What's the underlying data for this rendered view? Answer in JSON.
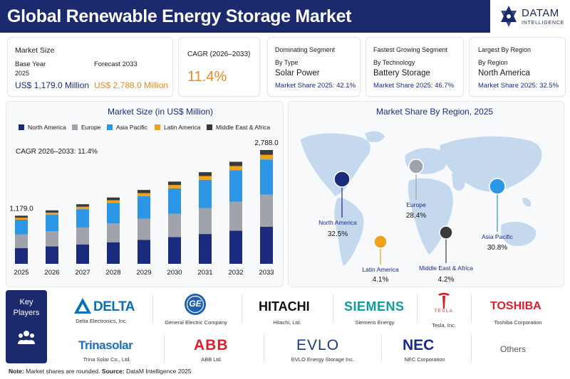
{
  "header": {
    "title": "Global Renewable Energy Storage Market"
  },
  "brand": {
    "name": "DATAM",
    "sub": "INTELLIGENCE"
  },
  "cards": {
    "market_size": {
      "title": "Market Size",
      "base_label": "Base Year",
      "base_year": "2025",
      "base_value": "US$ 1,179.0 Million",
      "forecast_label": "Forecast 2033",
      "forecast_value": "US$ 2,788.0 Million"
    },
    "cagr": {
      "label": "CAGR (2026–2033)",
      "value": "11.4%"
    },
    "dominating": {
      "title": "Dominating Segment",
      "by": "By Type",
      "name": "Solar Power",
      "share": "Market Share 2025: 42.1%"
    },
    "fastest": {
      "title": "Fastest Growing Segment",
      "by": "By Technology",
      "name": "Battery Storage",
      "share": "Market Share 2025: 46.7%"
    },
    "largest": {
      "title": "Largest By Region",
      "by": "By Region",
      "name": "North America",
      "share": "Market Share 2025: 32.5%"
    }
  },
  "colors": {
    "north_america": "#1a2a7c",
    "europe": "#a0a3aa",
    "asia_pacific": "#2b95e6",
    "latin_america": "#f0a21c",
    "mea": "#3a3a3a",
    "navy": "#1a2a6c"
  },
  "chart_data": [
    {
      "type": "bar",
      "stacked": true,
      "title": "Market Size (in US$ Million)",
      "annotation": "CAGR 2026–2033: 11.4%",
      "categories": [
        "2025",
        "2026",
        "2027",
        "2028",
        "2029",
        "2030",
        "2031",
        "2032",
        "2033"
      ],
      "totals": [
        1179.0,
        1310,
        1460,
        1625,
        1810,
        2015,
        2245,
        2500,
        2788.0
      ],
      "total_labels": [
        "1,179.0",
        "",
        "",
        "",
        "",
        "",
        "",
        "",
        "2,788.0"
      ],
      "series": [
        {
          "name": "North America",
          "values": [
            383,
            426,
            475,
            528,
            588,
            655,
            730,
            813,
            906
          ]
        },
        {
          "name": "Europe",
          "values": [
            335,
            372,
            415,
            462,
            514,
            572,
            638,
            710,
            792
          ]
        },
        {
          "name": "Asia Pacific",
          "values": [
            363,
            403,
            449,
            501,
            557,
            621,
            691,
            770,
            859
          ]
        },
        {
          "name": "Latin America",
          "values": [
            48,
            54,
            60,
            67,
            74,
            83,
            92,
            103,
            114
          ]
        },
        {
          "name": "Middle East & Africa",
          "values": [
            50,
            55,
            61,
            67,
            77,
            84,
            94,
            104,
            117
          ]
        }
      ],
      "ylim": [
        0,
        3000
      ],
      "legend": "top"
    },
    {
      "type": "map",
      "title": "Market Share By Region, 2025",
      "regions": [
        {
          "name": "North America",
          "value": "32.5%"
        },
        {
          "name": "Europe",
          "value": "28.4%"
        },
        {
          "name": "Latin America",
          "value": "4.1%"
        },
        {
          "name": "Middle East & Africa",
          "value": "4.2%"
        },
        {
          "name": "Asia Pacific",
          "value": "30.8%"
        }
      ]
    }
  ],
  "players": {
    "title": "Key Players",
    "list": [
      {
        "logo": "DELTA",
        "name": "Delta Electronics, Inc."
      },
      {
        "logo": "GE",
        "name": "General Electric Company"
      },
      {
        "logo": "HITACHI",
        "name": "Hitachi, Ltd."
      },
      {
        "logo": "SIEMENS",
        "name": "Siemens Energy"
      },
      {
        "logo": "TESLA",
        "name": "Tesla, Inc."
      },
      {
        "logo": "TOSHIBA",
        "name": "Toshiba Corporation"
      },
      {
        "logo": "Trinasolar",
        "name": "Trina Solar Co., Ltd."
      },
      {
        "logo": "ABB",
        "name": "ABB Ltd."
      },
      {
        "logo": "EVLO",
        "name": "EVLO Energy Storage Inc."
      },
      {
        "logo": "NEC",
        "name": "NEC Corporation"
      }
    ],
    "others": "Others"
  },
  "footer": {
    "note_label": "Note:",
    "note": "Market shares are rounded.",
    "source_label": "Source:",
    "source": "DataM Intelligence 2025"
  }
}
